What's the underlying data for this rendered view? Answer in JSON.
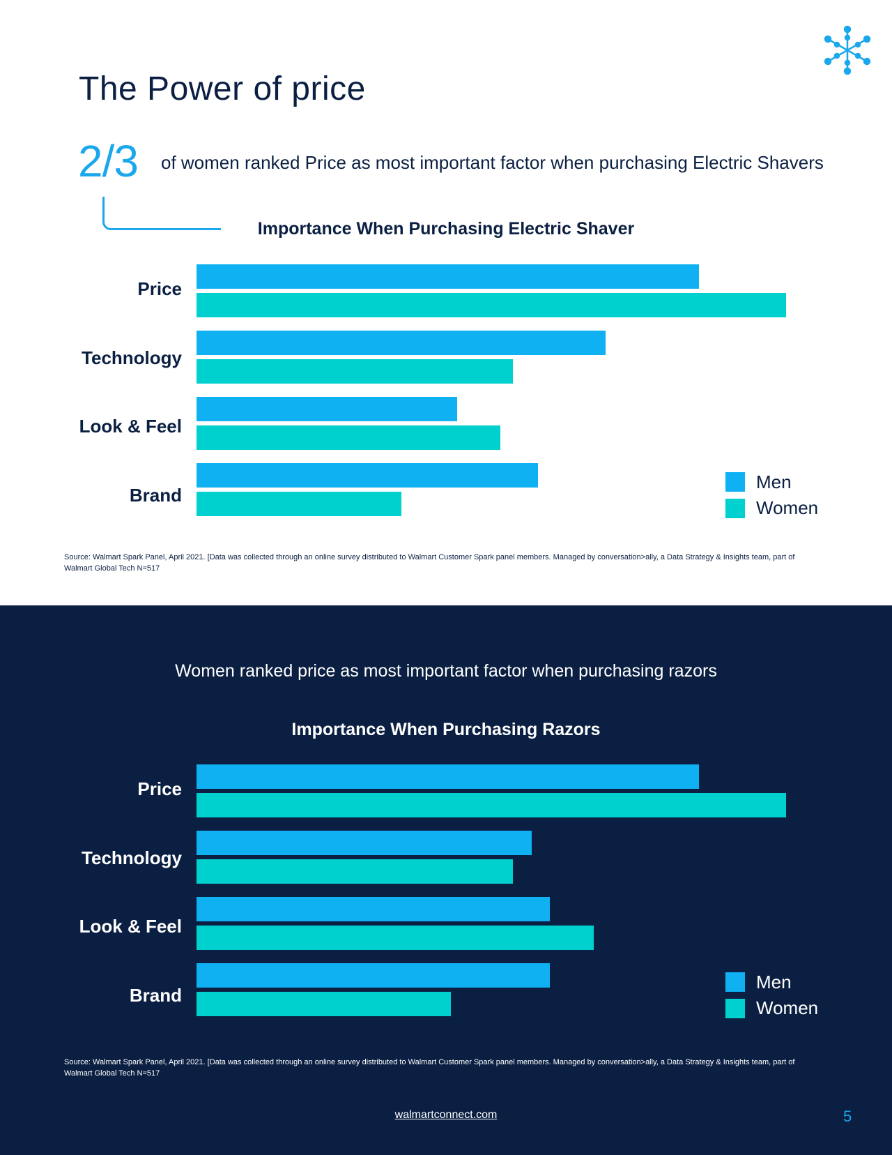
{
  "page": {
    "title": "The Power of price",
    "stat_value": "2/3",
    "stat_text": "of women ranked Price as most important factor when purchasing Electric Shavers",
    "razor_subtitle": "Women ranked price as most important factor when purchasing razors",
    "source_line1": "Source: Walmart Spark Panel, April 2021. [Data was collected through an online survey distributed to Walmart Customer Spark panel members. Managed by conversation>ally, a Data Strategy & Insights team, part of",
    "source_line2": "Walmart Global Tech N=517",
    "footer_link": "walmartconnect.com",
    "page_number": "5",
    "logo_icon": "spark-icon"
  },
  "colors": {
    "men": "#0fb1f2",
    "women": "#00d1cf",
    "navy": "#0b1f42",
    "accent": "#1aa7ec"
  },
  "chart_data": [
    {
      "type": "bar",
      "orientation": "horizontal",
      "title": "Importance When Purchasing Electric Shaver",
      "categories": [
        "Price",
        "Technology",
        "Look & Feel",
        "Brand"
      ],
      "series": [
        {
          "name": "Men",
          "values": [
            81,
            66,
            42,
            55
          ]
        },
        {
          "name": "Women",
          "values": [
            95,
            51,
            49,
            33
          ]
        }
      ],
      "xlabel": "",
      "ylabel": "",
      "xlim": [
        0,
        100
      ],
      "legend": "bottom-right",
      "grid": false
    },
    {
      "type": "bar",
      "orientation": "horizontal",
      "title": "Importance When Purchasing Razors",
      "categories": [
        "Price",
        "Technology",
        "Look & Feel",
        "Brand"
      ],
      "series": [
        {
          "name": "Men",
          "values": [
            81,
            54,
            57,
            57
          ]
        },
        {
          "name": "Women",
          "values": [
            95,
            51,
            64,
            41
          ]
        }
      ],
      "xlabel": "",
      "ylabel": "",
      "xlim": [
        0,
        100
      ],
      "legend": "bottom-right",
      "grid": false
    }
  ]
}
